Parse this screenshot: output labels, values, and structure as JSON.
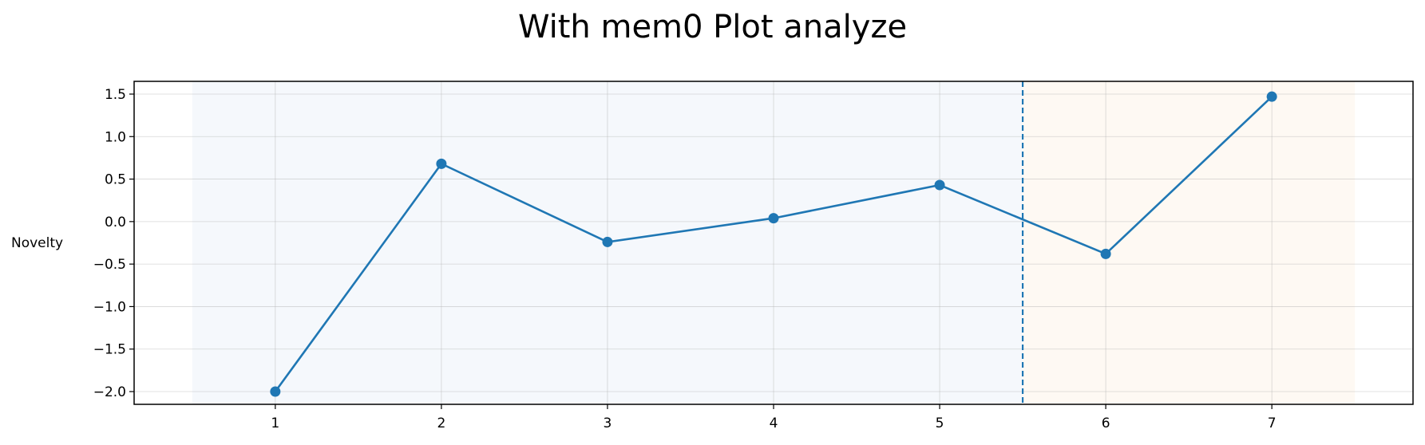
{
  "chart_data": {
    "type": "line",
    "title": "With mem0 Plot analyze",
    "xlabel": "",
    "ylabel": "Novelty",
    "x": [
      1,
      2,
      3,
      4,
      5,
      6,
      7
    ],
    "series": [
      {
        "values": [
          -2.0,
          0.68,
          -0.24,
          0.04,
          0.43,
          -0.38,
          1.47
        ],
        "color": "#1f77b4"
      }
    ],
    "xlim": [
      0.15,
      7.85
    ],
    "ylim": [
      -2.15,
      1.65
    ],
    "xticks": [
      1,
      2,
      3,
      4,
      5,
      6,
      7
    ],
    "yticks": [
      1.5,
      1.0,
      0.5,
      0.0,
      -0.5,
      -1.0,
      -1.5,
      -2.0
    ],
    "ytick_labels": [
      "1.5",
      "1.0",
      "0.5",
      "0.0",
      "−0.5",
      "−1.0",
      "−1.5",
      "−2.0"
    ],
    "grid": true,
    "shaded_regions": [
      {
        "x_start": 0.5,
        "x_end": 5.5,
        "color": "#f5f8fc"
      },
      {
        "x_start": 5.5,
        "x_end": 7.5,
        "color": "#fef9f3"
      }
    ],
    "vline": {
      "x": 5.5,
      "style": "dashed",
      "color": "#1f77b4"
    }
  }
}
